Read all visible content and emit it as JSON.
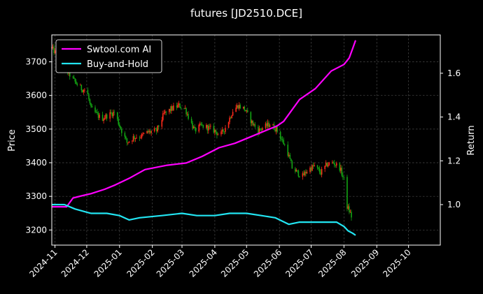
{
  "chart_data": {
    "type": "line",
    "title": "futures [JD2510.DCE]",
    "ylabel": "Price",
    "y2label": "Return",
    "ylim": [
      3155,
      3780
    ],
    "y2lim": [
      0.815,
      1.775
    ],
    "xlim": [
      "2024-10-29",
      "2025-10-31"
    ],
    "grid": true,
    "legend_position": "top-left",
    "x_ticks": [
      "2024-11",
      "2024-12",
      "2025-01",
      "2025-02",
      "2025-03",
      "2025-04",
      "2025-05",
      "2025-06",
      "2025-07",
      "2025-08",
      "2025-09",
      "2025-10"
    ],
    "x_tick_dates": [
      "2024-11-01",
      "2024-12-01",
      "2025-01-01",
      "2025-02-01",
      "2025-03-01",
      "2025-04-01",
      "2025-05-01",
      "2025-06-01",
      "2025-07-01",
      "2025-08-01",
      "2025-09-01",
      "2025-10-01"
    ],
    "y_ticks": [
      3200,
      3300,
      3400,
      3500,
      3600,
      3700
    ],
    "y2_ticks": [
      1.0,
      1.2,
      1.4,
      1.6
    ],
    "y2_tick_labels": [
      "1.0",
      "1.2",
      "1.4",
      "1.6"
    ],
    "colors": {
      "up": "#ff2a1a",
      "down": "#13a513",
      "ai": "#ff00ff",
      "bh": "#22e5f2",
      "grid": "#4a4a4a",
      "frame": "#ffffff"
    },
    "price_points": [
      [
        "2024-10-29",
        3740
      ],
      [
        "2024-11-03",
        3720
      ],
      [
        "2024-11-08",
        3690
      ],
      [
        "2024-11-14",
        3665
      ],
      [
        "2024-11-20",
        3640
      ],
      [
        "2024-11-26",
        3620
      ],
      [
        "2024-12-01",
        3615
      ],
      [
        "2024-12-05",
        3560
      ],
      [
        "2024-12-10",
        3545
      ],
      [
        "2024-12-15",
        3530
      ],
      [
        "2024-12-20",
        3540
      ],
      [
        "2024-12-27",
        3550
      ],
      [
        "2025-01-03",
        3495
      ],
      [
        "2025-01-08",
        3460
      ],
      [
        "2025-01-14",
        3475
      ],
      [
        "2025-01-22",
        3480
      ],
      [
        "2025-01-27",
        3490
      ],
      [
        "2025-02-05",
        3495
      ],
      [
        "2025-02-12",
        3545
      ],
      [
        "2025-02-19",
        3560
      ],
      [
        "2025-02-26",
        3570
      ],
      [
        "2025-03-04",
        3560
      ],
      [
        "2025-03-08",
        3530
      ],
      [
        "2025-03-13",
        3495
      ],
      [
        "2025-03-19",
        3510
      ],
      [
        "2025-03-25",
        3505
      ],
      [
        "2025-04-01",
        3495
      ],
      [
        "2025-04-06",
        3480
      ],
      [
        "2025-04-12",
        3510
      ],
      [
        "2025-04-18",
        3555
      ],
      [
        "2025-04-23",
        3570
      ],
      [
        "2025-04-29",
        3560
      ],
      [
        "2025-05-06",
        3520
      ],
      [
        "2025-05-12",
        3495
      ],
      [
        "2025-05-17",
        3505
      ],
      [
        "2025-05-23",
        3515
      ],
      [
        "2025-05-29",
        3500
      ],
      [
        "2025-06-03",
        3470
      ],
      [
        "2025-06-08",
        3440
      ],
      [
        "2025-06-13",
        3385
      ],
      [
        "2025-06-18",
        3370
      ],
      [
        "2025-06-23",
        3360
      ],
      [
        "2025-06-28",
        3380
      ],
      [
        "2025-07-04",
        3390
      ],
      [
        "2025-07-10",
        3370
      ],
      [
        "2025-07-16",
        3395
      ],
      [
        "2025-07-22",
        3400
      ],
      [
        "2025-07-28",
        3385
      ],
      [
        "2025-08-01",
        3350
      ],
      [
        "2025-08-04",
        3270
      ],
      [
        "2025-08-07",
        3250
      ],
      [
        "2025-08-10",
        3220
      ]
    ],
    "series": [
      {
        "name": "Swtool.com AI",
        "axis": "return",
        "x": [
          "2024-10-29",
          "2024-11-12",
          "2024-11-18",
          "2024-11-26",
          "2024-12-05",
          "2024-12-18",
          "2024-12-28",
          "2025-01-10",
          "2025-01-25",
          "2025-02-15",
          "2025-03-05",
          "2025-03-20",
          "2025-04-05",
          "2025-04-20",
          "2025-05-05",
          "2025-05-20",
          "2025-05-30",
          "2025-06-05",
          "2025-06-20",
          "2025-07-05",
          "2025-07-20",
          "2025-08-01",
          "2025-08-06",
          "2025-08-09",
          "2025-08-12"
        ],
        "values": [
          0.99,
          0.99,
          1.03,
          1.04,
          1.05,
          1.07,
          1.09,
          1.12,
          1.16,
          1.18,
          1.19,
          1.22,
          1.26,
          1.28,
          1.31,
          1.34,
          1.36,
          1.38,
          1.48,
          1.53,
          1.61,
          1.64,
          1.67,
          1.71,
          1.75
        ]
      },
      {
        "name": "Buy-and-Hold",
        "axis": "return",
        "x": [
          "2024-10-29",
          "2024-11-10",
          "2024-11-20",
          "2024-12-05",
          "2024-12-20",
          "2025-01-01",
          "2025-01-10",
          "2025-01-20",
          "2025-02-10",
          "2025-03-01",
          "2025-03-15",
          "2025-04-01",
          "2025-04-15",
          "2025-05-01",
          "2025-05-15",
          "2025-05-28",
          "2025-06-10",
          "2025-06-20",
          "2025-07-01",
          "2025-07-15",
          "2025-07-25",
          "2025-08-01",
          "2025-08-05",
          "2025-08-09",
          "2025-08-12"
        ],
        "values": [
          1.0,
          1.0,
          0.98,
          0.96,
          0.96,
          0.95,
          0.93,
          0.94,
          0.95,
          0.96,
          0.95,
          0.95,
          0.96,
          0.96,
          0.95,
          0.94,
          0.91,
          0.92,
          0.92,
          0.92,
          0.92,
          0.9,
          0.88,
          0.87,
          0.86
        ]
      }
    ]
  }
}
